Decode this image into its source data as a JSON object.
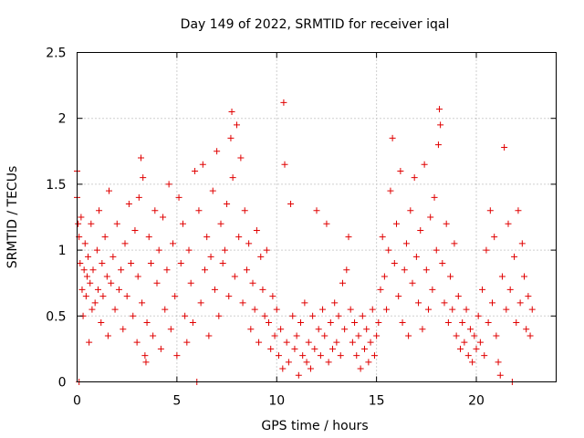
{
  "chart_data": {
    "type": "scatter",
    "title": "Day 149 of 2022, SRMTID for receiver iqal",
    "xlabel": "GPS time / hours",
    "ylabel": "SRMTID / TECUs",
    "xlim": [
      0,
      24
    ],
    "ylim": [
      0,
      2.5
    ],
    "xticks": [
      0,
      5,
      10,
      15,
      20
    ],
    "xtick_labels": [
      "0",
      "5",
      "10",
      "15",
      "20"
    ],
    "yticks": [
      0,
      0.5,
      1,
      1.5,
      2,
      2.5
    ],
    "ytick_labels": [
      "0",
      "0.5",
      "1",
      "1.5",
      "2",
      "2.5"
    ],
    "grid": true,
    "marker": "+",
    "color": "#e00000",
    "series": [
      {
        "name": "SRMTID",
        "points": [
          [
            0.0,
            1.6
          ],
          [
            0.0,
            1.4
          ],
          [
            0.05,
            1.2
          ],
          [
            0.1,
            1.1
          ],
          [
            0.1,
            0.0
          ],
          [
            0.15,
            0.9
          ],
          [
            0.2,
            1.25
          ],
          [
            0.25,
            0.7
          ],
          [
            0.3,
            0.5
          ],
          [
            0.35,
            0.85
          ],
          [
            0.4,
            1.05
          ],
          [
            0.45,
            0.65
          ],
          [
            0.5,
            0.8
          ],
          [
            0.55,
            0.95
          ],
          [
            0.6,
            0.3
          ],
          [
            0.65,
            0.75
          ],
          [
            0.7,
            1.2
          ],
          [
            0.75,
            0.55
          ],
          [
            0.8,
            0.85
          ],
          [
            0.9,
            0.6
          ],
          [
            1.0,
            1.0
          ],
          [
            1.05,
            0.7
          ],
          [
            1.1,
            1.3
          ],
          [
            1.2,
            0.45
          ],
          [
            1.25,
            0.9
          ],
          [
            1.3,
            0.65
          ],
          [
            1.4,
            1.1
          ],
          [
            1.5,
            0.8
          ],
          [
            1.55,
            0.35
          ],
          [
            1.6,
            1.45
          ],
          [
            1.7,
            0.75
          ],
          [
            1.8,
            0.95
          ],
          [
            1.9,
            0.55
          ],
          [
            2.0,
            1.2
          ],
          [
            2.1,
            0.7
          ],
          [
            2.2,
            0.85
          ],
          [
            2.3,
            0.4
          ],
          [
            2.4,
            1.05
          ],
          [
            2.5,
            0.65
          ],
          [
            2.6,
            1.35
          ],
          [
            2.7,
            0.9
          ],
          [
            2.8,
            0.5
          ],
          [
            2.9,
            1.15
          ],
          [
            3.0,
            0.3
          ],
          [
            3.05,
            0.8
          ],
          [
            3.1,
            1.4
          ],
          [
            3.2,
            1.7
          ],
          [
            3.25,
            0.6
          ],
          [
            3.3,
            1.55
          ],
          [
            3.4,
            0.2
          ],
          [
            3.45,
            0.15
          ],
          [
            3.5,
            0.45
          ],
          [
            3.6,
            1.1
          ],
          [
            3.7,
            0.9
          ],
          [
            3.8,
            0.35
          ],
          [
            3.9,
            1.3
          ],
          [
            4.0,
            0.75
          ],
          [
            4.1,
            1.0
          ],
          [
            4.2,
            0.25
          ],
          [
            4.3,
            1.25
          ],
          [
            4.4,
            0.55
          ],
          [
            4.5,
            0.85
          ],
          [
            4.6,
            1.5
          ],
          [
            4.7,
            0.4
          ],
          [
            4.8,
            1.05
          ],
          [
            4.9,
            0.65
          ],
          [
            5.0,
            0.2
          ],
          [
            5.1,
            1.4
          ],
          [
            5.2,
            0.9
          ],
          [
            5.3,
            1.2
          ],
          [
            5.4,
            0.5
          ],
          [
            5.5,
            0.3
          ],
          [
            5.6,
            1.0
          ],
          [
            5.7,
            0.75
          ],
          [
            5.8,
            0.45
          ],
          [
            5.9,
            1.6
          ],
          [
            6.0,
            0.0
          ],
          [
            6.1,
            1.3
          ],
          [
            6.2,
            0.6
          ],
          [
            6.3,
            1.65
          ],
          [
            6.4,
            0.85
          ],
          [
            6.5,
            1.1
          ],
          [
            6.6,
            0.35
          ],
          [
            6.7,
            0.95
          ],
          [
            6.8,
            1.45
          ],
          [
            6.9,
            0.7
          ],
          [
            7.0,
            1.75
          ],
          [
            7.1,
            0.5
          ],
          [
            7.2,
            1.2
          ],
          [
            7.3,
            0.9
          ],
          [
            7.4,
            1.0
          ],
          [
            7.5,
            1.35
          ],
          [
            7.6,
            0.65
          ],
          [
            7.7,
            1.85
          ],
          [
            7.75,
            2.05
          ],
          [
            7.8,
            1.55
          ],
          [
            7.9,
            0.8
          ],
          [
            8.0,
            1.95
          ],
          [
            8.1,
            1.1
          ],
          [
            8.2,
            1.7
          ],
          [
            8.3,
            0.6
          ],
          [
            8.4,
            1.3
          ],
          [
            8.5,
            0.85
          ],
          [
            8.6,
            1.05
          ],
          [
            8.7,
            0.4
          ],
          [
            8.8,
            0.75
          ],
          [
            8.9,
            0.55
          ],
          [
            9.0,
            1.15
          ],
          [
            9.1,
            0.3
          ],
          [
            9.2,
            0.95
          ],
          [
            9.3,
            0.7
          ],
          [
            9.4,
            0.5
          ],
          [
            9.5,
            1.0
          ],
          [
            9.6,
            0.45
          ],
          [
            9.7,
            0.25
          ],
          [
            9.8,
            0.65
          ],
          [
            9.9,
            0.35
          ],
          [
            10.0,
            0.55
          ],
          [
            10.1,
            0.2
          ],
          [
            10.2,
            0.4
          ],
          [
            10.3,
            0.1
          ],
          [
            10.35,
            2.12
          ],
          [
            10.4,
            1.65
          ],
          [
            10.5,
            0.3
          ],
          [
            10.6,
            0.15
          ],
          [
            10.7,
            1.35
          ],
          [
            10.8,
            0.5
          ],
          [
            10.9,
            0.25
          ],
          [
            11.0,
            0.35
          ],
          [
            11.1,
            0.05
          ],
          [
            11.2,
            0.45
          ],
          [
            11.3,
            0.2
          ],
          [
            11.4,
            0.6
          ],
          [
            11.5,
            0.15
          ],
          [
            11.6,
            0.3
          ],
          [
            11.7,
            0.1
          ],
          [
            11.8,
            0.5
          ],
          [
            11.9,
            0.25
          ],
          [
            12.0,
            1.3
          ],
          [
            12.1,
            0.4
          ],
          [
            12.2,
            0.2
          ],
          [
            12.3,
            0.55
          ],
          [
            12.4,
            0.35
          ],
          [
            12.5,
            1.2
          ],
          [
            12.6,
            0.15
          ],
          [
            12.7,
            0.45
          ],
          [
            12.8,
            0.25
          ],
          [
            12.9,
            0.6
          ],
          [
            13.0,
            0.3
          ],
          [
            13.1,
            0.5
          ],
          [
            13.2,
            0.2
          ],
          [
            13.3,
            0.75
          ],
          [
            13.4,
            0.4
          ],
          [
            13.5,
            0.85
          ],
          [
            13.6,
            1.1
          ],
          [
            13.7,
            0.55
          ],
          [
            13.8,
            0.3
          ],
          [
            13.9,
            0.45
          ],
          [
            14.0,
            0.2
          ],
          [
            14.1,
            0.35
          ],
          [
            14.2,
            0.1
          ],
          [
            14.3,
            0.5
          ],
          [
            14.4,
            0.25
          ],
          [
            14.5,
            0.4
          ],
          [
            14.6,
            0.15
          ],
          [
            14.7,
            0.3
          ],
          [
            14.8,
            0.55
          ],
          [
            14.9,
            0.2
          ],
          [
            15.0,
            0.35
          ],
          [
            15.1,
            0.45
          ],
          [
            15.2,
            0.7
          ],
          [
            15.3,
            1.1
          ],
          [
            15.4,
            0.8
          ],
          [
            15.5,
            0.55
          ],
          [
            15.6,
            1.0
          ],
          [
            15.7,
            1.45
          ],
          [
            15.8,
            1.85
          ],
          [
            15.9,
            0.9
          ],
          [
            16.0,
            1.2
          ],
          [
            16.1,
            0.65
          ],
          [
            16.2,
            1.6
          ],
          [
            16.3,
            0.45
          ],
          [
            16.4,
            0.85
          ],
          [
            16.5,
            1.05
          ],
          [
            16.6,
            0.35
          ],
          [
            16.7,
            1.3
          ],
          [
            16.8,
            0.75
          ],
          [
            16.9,
            1.55
          ],
          [
            17.0,
            0.95
          ],
          [
            17.1,
            0.6
          ],
          [
            17.2,
            1.15
          ],
          [
            17.3,
            0.4
          ],
          [
            17.4,
            1.65
          ],
          [
            17.5,
            0.85
          ],
          [
            17.6,
            0.55
          ],
          [
            17.7,
            1.25
          ],
          [
            17.8,
            0.7
          ],
          [
            17.9,
            1.4
          ],
          [
            18.0,
            1.0
          ],
          [
            18.1,
            1.8
          ],
          [
            18.15,
            2.07
          ],
          [
            18.2,
            1.95
          ],
          [
            18.3,
            0.9
          ],
          [
            18.4,
            0.6
          ],
          [
            18.5,
            1.2
          ],
          [
            18.6,
            0.45
          ],
          [
            18.7,
            0.8
          ],
          [
            18.8,
            0.55
          ],
          [
            18.9,
            1.05
          ],
          [
            19.0,
            0.35
          ],
          [
            19.1,
            0.65
          ],
          [
            19.2,
            0.25
          ],
          [
            19.3,
            0.45
          ],
          [
            19.4,
            0.3
          ],
          [
            19.5,
            0.55
          ],
          [
            19.6,
            0.2
          ],
          [
            19.7,
            0.4
          ],
          [
            19.8,
            0.15
          ],
          [
            19.9,
            0.35
          ],
          [
            20.0,
            0.25
          ],
          [
            20.1,
            0.5
          ],
          [
            20.2,
            0.3
          ],
          [
            20.3,
            0.7
          ],
          [
            20.4,
            0.2
          ],
          [
            20.5,
            1.0
          ],
          [
            20.6,
            0.45
          ],
          [
            20.7,
            1.3
          ],
          [
            20.8,
            0.6
          ],
          [
            20.9,
            1.1
          ],
          [
            21.0,
            0.35
          ],
          [
            21.1,
            0.15
          ],
          [
            21.2,
            0.05
          ],
          [
            21.3,
            0.8
          ],
          [
            21.4,
            1.78
          ],
          [
            21.5,
            0.55
          ],
          [
            21.6,
            1.2
          ],
          [
            21.7,
            0.7
          ],
          [
            21.8,
            0.0
          ],
          [
            21.9,
            0.95
          ],
          [
            22.0,
            0.45
          ],
          [
            22.1,
            1.3
          ],
          [
            22.2,
            0.6
          ],
          [
            22.3,
            1.05
          ],
          [
            22.4,
            0.8
          ],
          [
            22.5,
            0.4
          ],
          [
            22.6,
            0.65
          ],
          [
            22.7,
            0.35
          ],
          [
            22.8,
            0.55
          ]
        ]
      }
    ]
  }
}
